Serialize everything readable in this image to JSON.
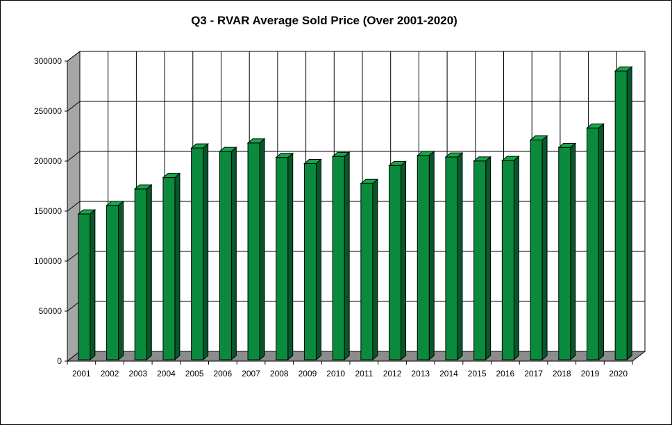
{
  "chart_data": {
    "type": "bar",
    "title": "Q3 - RVAR Average Sold Price (Over 2001-2020)",
    "xlabel": "",
    "ylabel": "",
    "categories": [
      "2001",
      "2002",
      "2003",
      "2004",
      "2005",
      "2006",
      "2007",
      "2008",
      "2009",
      "2010",
      "2011",
      "2012",
      "2013",
      "2014",
      "2015",
      "2016",
      "2017",
      "2018",
      "2019",
      "2020"
    ],
    "values": [
      148500,
      157000,
      173500,
      185000,
      214500,
      211000,
      219500,
      205000,
      199000,
      206000,
      179000,
      197000,
      207000,
      205500,
      201500,
      202000,
      222500,
      215000,
      234500,
      291500
    ],
    "ylim": [
      0,
      300000
    ],
    "yticks": [
      "0",
      "50000",
      "100000",
      "150000",
      "200000",
      "250000",
      "300000"
    ],
    "grid": true,
    "legend": "none",
    "bar_style": "3d",
    "colors": {
      "bar_front": "#0a8a3c",
      "bar_side": "#06582a",
      "bar_top": "#14a84a",
      "back_wall": "#ffffff",
      "side_wall": "#a6a6a6",
      "floor": "#8c8c8c"
    }
  }
}
